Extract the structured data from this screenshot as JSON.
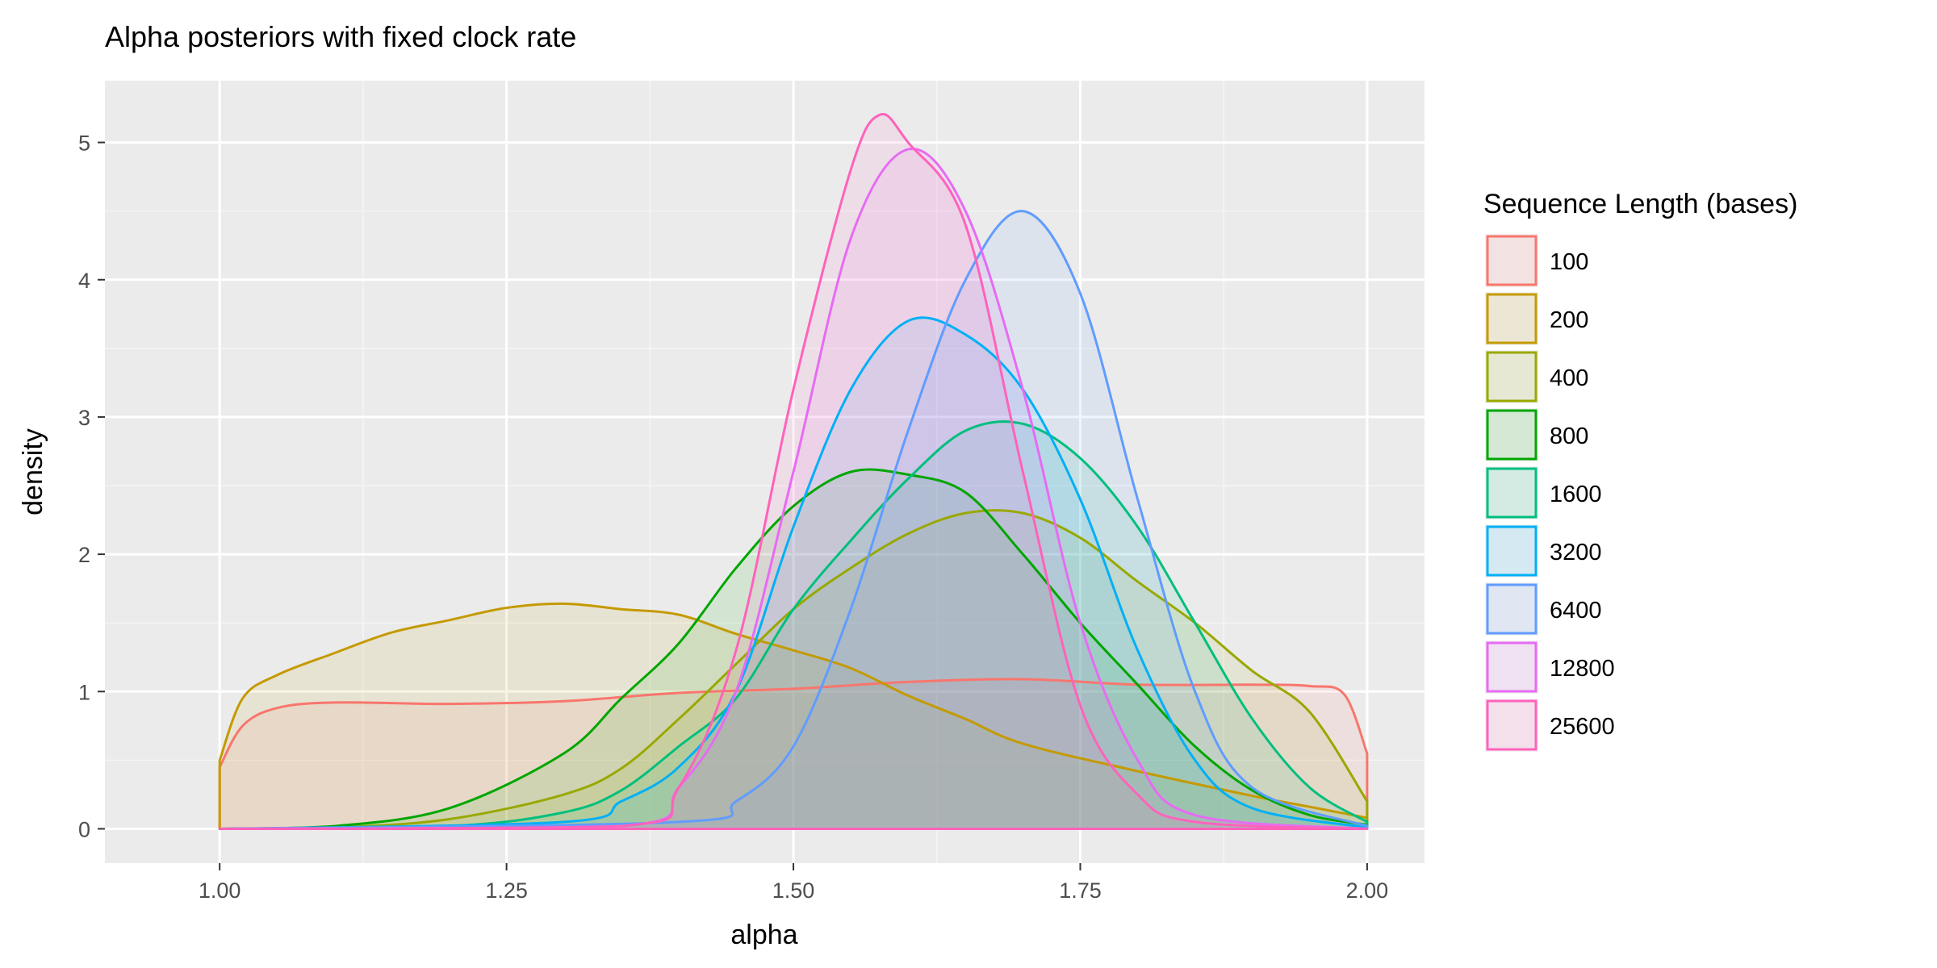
{
  "chart_data": {
    "type": "area",
    "title": "Alpha posteriors with fixed clock rate",
    "xlabel": "alpha",
    "ylabel": "density",
    "xlim": [
      0.9,
      2.05
    ],
    "ylim": [
      -0.25,
      5.45
    ],
    "xticks": [
      "1.00",
      "1.25",
      "1.50",
      "1.75",
      "2.00"
    ],
    "xtick_values": [
      1.0,
      1.25,
      1.5,
      1.75,
      2.0
    ],
    "yticks": [
      "0",
      "1",
      "2",
      "3",
      "4",
      "5"
    ],
    "ytick_values": [
      0,
      1,
      2,
      3,
      4,
      5
    ],
    "grid": true,
    "legend": {
      "title": "Sequence Length (bases)",
      "position": "right"
    },
    "series": [
      {
        "name": "100",
        "color": "#F8766D",
        "points": [
          [
            1.0,
            0.45
          ],
          [
            1.02,
            0.75
          ],
          [
            1.05,
            0.88
          ],
          [
            1.1,
            0.92
          ],
          [
            1.2,
            0.91
          ],
          [
            1.3,
            0.93
          ],
          [
            1.4,
            0.99
          ],
          [
            1.5,
            1.02
          ],
          [
            1.6,
            1.07
          ],
          [
            1.7,
            1.09
          ],
          [
            1.8,
            1.05
          ],
          [
            1.9,
            1.05
          ],
          [
            1.95,
            1.04
          ],
          [
            1.98,
            0.98
          ],
          [
            2.0,
            0.55
          ]
        ]
      },
      {
        "name": "200",
        "color": "#C49A00",
        "points": [
          [
            1.0,
            0.5
          ],
          [
            1.02,
            0.95
          ],
          [
            1.05,
            1.12
          ],
          [
            1.1,
            1.28
          ],
          [
            1.15,
            1.43
          ],
          [
            1.2,
            1.52
          ],
          [
            1.25,
            1.61
          ],
          [
            1.3,
            1.64
          ],
          [
            1.35,
            1.6
          ],
          [
            1.4,
            1.56
          ],
          [
            1.45,
            1.42
          ],
          [
            1.5,
            1.3
          ],
          [
            1.55,
            1.17
          ],
          [
            1.6,
            0.97
          ],
          [
            1.65,
            0.8
          ],
          [
            1.7,
            0.62
          ],
          [
            1.8,
            0.42
          ],
          [
            1.9,
            0.24
          ],
          [
            1.95,
            0.16
          ],
          [
            2.0,
            0.08
          ]
        ]
      },
      {
        "name": "400",
        "color": "#99A800",
        "points": [
          [
            1.0,
            0.0
          ],
          [
            1.1,
            0.01
          ],
          [
            1.2,
            0.07
          ],
          [
            1.3,
            0.25
          ],
          [
            1.35,
            0.44
          ],
          [
            1.4,
            0.8
          ],
          [
            1.45,
            1.2
          ],
          [
            1.5,
            1.6
          ],
          [
            1.55,
            1.9
          ],
          [
            1.6,
            2.15
          ],
          [
            1.65,
            2.3
          ],
          [
            1.7,
            2.3
          ],
          [
            1.75,
            2.12
          ],
          [
            1.8,
            1.8
          ],
          [
            1.85,
            1.5
          ],
          [
            1.9,
            1.15
          ],
          [
            1.95,
            0.85
          ],
          [
            2.0,
            0.2
          ]
        ]
      },
      {
        "name": "800",
        "color": "#00A600",
        "points": [
          [
            1.0,
            0.0
          ],
          [
            1.1,
            0.02
          ],
          [
            1.2,
            0.15
          ],
          [
            1.3,
            0.55
          ],
          [
            1.35,
            0.95
          ],
          [
            1.4,
            1.35
          ],
          [
            1.45,
            1.9
          ],
          [
            1.5,
            2.35
          ],
          [
            1.55,
            2.6
          ],
          [
            1.6,
            2.58
          ],
          [
            1.65,
            2.45
          ],
          [
            1.7,
            2.0
          ],
          [
            1.75,
            1.5
          ],
          [
            1.8,
            1.05
          ],
          [
            1.85,
            0.6
          ],
          [
            1.9,
            0.28
          ],
          [
            1.95,
            0.1
          ],
          [
            2.0,
            0.03
          ]
        ]
      },
      {
        "name": "1600",
        "color": "#00BF7D",
        "points": [
          [
            1.0,
            0.0
          ],
          [
            1.2,
            0.02
          ],
          [
            1.3,
            0.12
          ],
          [
            1.35,
            0.28
          ],
          [
            1.4,
            0.6
          ],
          [
            1.45,
            0.95
          ],
          [
            1.5,
            1.6
          ],
          [
            1.55,
            2.1
          ],
          [
            1.6,
            2.55
          ],
          [
            1.65,
            2.9
          ],
          [
            1.7,
            2.95
          ],
          [
            1.75,
            2.7
          ],
          [
            1.8,
            2.2
          ],
          [
            1.85,
            1.5
          ],
          [
            1.9,
            0.8
          ],
          [
            1.95,
            0.3
          ],
          [
            2.0,
            0.05
          ]
        ]
      },
      {
        "name": "3200",
        "color": "#00B0F6",
        "points": [
          [
            1.0,
            0.0
          ],
          [
            1.3,
            0.05
          ],
          [
            1.35,
            0.2
          ],
          [
            1.4,
            0.45
          ],
          [
            1.45,
            1.0
          ],
          [
            1.5,
            2.2
          ],
          [
            1.55,
            3.2
          ],
          [
            1.6,
            3.7
          ],
          [
            1.65,
            3.6
          ],
          [
            1.7,
            3.2
          ],
          [
            1.75,
            2.4
          ],
          [
            1.8,
            1.3
          ],
          [
            1.85,
            0.5
          ],
          [
            1.9,
            0.15
          ],
          [
            2.0,
            0.01
          ]
        ]
      },
      {
        "name": "6400",
        "color": "#619CFF",
        "points": [
          [
            1.0,
            0.0
          ],
          [
            1.4,
            0.05
          ],
          [
            1.45,
            0.2
          ],
          [
            1.5,
            0.6
          ],
          [
            1.55,
            1.6
          ],
          [
            1.6,
            2.9
          ],
          [
            1.65,
            4.0
          ],
          [
            1.7,
            4.5
          ],
          [
            1.75,
            3.9
          ],
          [
            1.8,
            2.4
          ],
          [
            1.85,
            1.0
          ],
          [
            1.9,
            0.3
          ],
          [
            2.0,
            0.02
          ]
        ]
      },
      {
        "name": "12800",
        "color": "#E76BF3",
        "points": [
          [
            1.0,
            0.0
          ],
          [
            1.35,
            0.02
          ],
          [
            1.4,
            0.3
          ],
          [
            1.45,
            1.0
          ],
          [
            1.5,
            2.6
          ],
          [
            1.55,
            4.3
          ],
          [
            1.6,
            4.95
          ],
          [
            1.65,
            4.5
          ],
          [
            1.7,
            3.2
          ],
          [
            1.75,
            1.5
          ],
          [
            1.8,
            0.5
          ],
          [
            1.85,
            0.1
          ],
          [
            2.0,
            0.0
          ]
        ]
      },
      {
        "name": "25600",
        "color": "#FF62BC",
        "points": [
          [
            1.0,
            0.0
          ],
          [
            1.35,
            0.02
          ],
          [
            1.4,
            0.3
          ],
          [
            1.45,
            1.3
          ],
          [
            1.5,
            3.2
          ],
          [
            1.55,
            4.8
          ],
          [
            1.575,
            5.2
          ],
          [
            1.6,
            5.0
          ],
          [
            1.65,
            4.4
          ],
          [
            1.7,
            2.6
          ],
          [
            1.75,
            0.9
          ],
          [
            1.8,
            0.25
          ],
          [
            1.85,
            0.05
          ],
          [
            2.0,
            0.0
          ]
        ]
      }
    ]
  }
}
